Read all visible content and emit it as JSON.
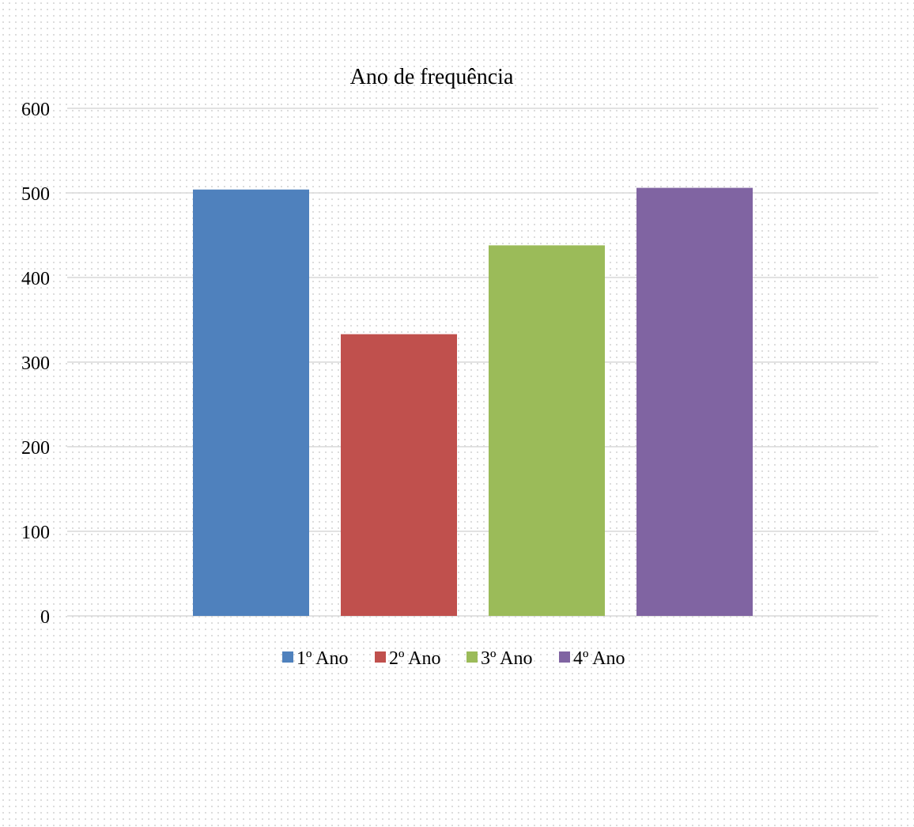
{
  "chart_data": {
    "type": "bar",
    "title": "Ano de frequência",
    "xlabel": "",
    "ylabel": "",
    "categories": [
      ""
    ],
    "series": [
      {
        "name": "1º Ano",
        "color": "#4F81BD",
        "values": [
          504
        ]
      },
      {
        "name": "2º Ano",
        "color": "#C0504D",
        "values": [
          333
        ]
      },
      {
        "name": "3º Ano",
        "color": "#9BBB59",
        "values": [
          438
        ]
      },
      {
        "name": "4º Ano",
        "color": "#8064A2",
        "values": [
          506
        ]
      }
    ],
    "ylim": [
      0,
      600
    ],
    "yticks": [
      "0",
      "100",
      "200",
      "300",
      "400",
      "500",
      "600"
    ],
    "grid": true,
    "legend_position": "bottom"
  }
}
